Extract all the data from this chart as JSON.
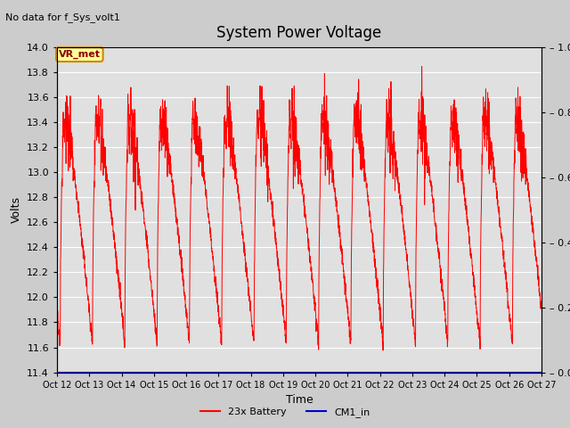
{
  "title": "System Power Voltage",
  "no_data_text": "No data for f_Sys_volt1",
  "xlabel": "Time",
  "ylabel": "Volts",
  "ylim_left": [
    11.4,
    14.0
  ],
  "ylim_right": [
    0.0,
    1.0
  ],
  "yticks_left": [
    11.4,
    11.6,
    11.8,
    12.0,
    12.2,
    12.4,
    12.6,
    12.8,
    13.0,
    13.2,
    13.4,
    13.6,
    13.8,
    14.0
  ],
  "yticks_right": [
    0.0,
    0.2,
    0.4,
    0.6,
    0.8,
    1.0
  ],
  "xtick_labels": [
    "Oct 12",
    "Oct 13",
    "Oct 14",
    "Oct 15",
    "Oct 16",
    "Oct 17",
    "Oct 18",
    "Oct 19",
    "Oct 20",
    "Oct 21",
    "Oct 22",
    "Oct 23",
    "Oct 24",
    "Oct 25",
    "Oct 26",
    "Oct 27"
  ],
  "outer_bg_color": "#cccccc",
  "plot_bg_color": "#e0e0e0",
  "line_color_battery": "#ff0000",
  "line_color_cm1": "#0000cc",
  "legend_battery": "23x Battery",
  "legend_cm1": "CM1_in",
  "vr_met_label": "VR_met",
  "vr_met_bg": "#ffff99",
  "vr_met_border": "#cc8800",
  "title_fontsize": 12,
  "label_fontsize": 9,
  "tick_fontsize": 8,
  "no_data_fontsize": 8
}
